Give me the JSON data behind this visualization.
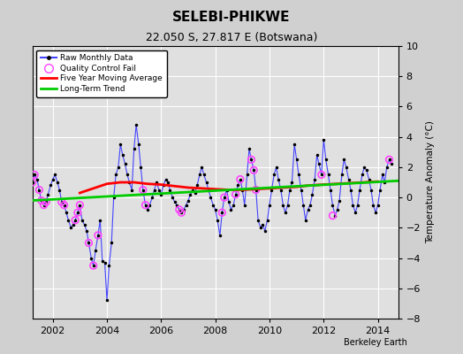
{
  "title": "SELEBI-PHIKWE",
  "subtitle": "22.050 S, 27.817 E (Botswana)",
  "ylabel": "Temperature Anomaly (°C)",
  "credit": "Berkeley Earth",
  "xlim": [
    2001.25,
    2014.75
  ],
  "ylim": [
    -8,
    10
  ],
  "yticks": [
    -8,
    -6,
    -4,
    -2,
    0,
    2,
    4,
    6,
    8,
    10
  ],
  "xticks": [
    2002,
    2004,
    2006,
    2008,
    2010,
    2012,
    2014
  ],
  "raw_x": [
    2001.25,
    2001.33,
    2001.42,
    2001.5,
    2001.58,
    2001.67,
    2001.75,
    2001.83,
    2001.92,
    2002.0,
    2002.08,
    2002.17,
    2002.25,
    2002.33,
    2002.42,
    2002.5,
    2002.58,
    2002.67,
    2002.75,
    2002.83,
    2002.92,
    2003.0,
    2003.08,
    2003.17,
    2003.25,
    2003.33,
    2003.42,
    2003.5,
    2003.58,
    2003.67,
    2003.75,
    2003.83,
    2003.92,
    2004.0,
    2004.08,
    2004.17,
    2004.25,
    2004.33,
    2004.42,
    2004.5,
    2004.58,
    2004.67,
    2004.75,
    2004.83,
    2004.92,
    2005.0,
    2005.08,
    2005.17,
    2005.25,
    2005.33,
    2005.42,
    2005.5,
    2005.58,
    2005.67,
    2005.75,
    2005.83,
    2005.92,
    2006.0,
    2006.08,
    2006.17,
    2006.25,
    2006.33,
    2006.42,
    2006.5,
    2006.58,
    2006.67,
    2006.75,
    2006.83,
    2006.92,
    2007.0,
    2007.08,
    2007.17,
    2007.25,
    2007.33,
    2007.42,
    2007.5,
    2007.58,
    2007.67,
    2007.75,
    2007.83,
    2007.92,
    2008.0,
    2008.08,
    2008.17,
    2008.25,
    2008.33,
    2008.42,
    2008.5,
    2008.58,
    2008.67,
    2008.75,
    2008.83,
    2008.92,
    2009.0,
    2009.08,
    2009.17,
    2009.25,
    2009.33,
    2009.42,
    2009.5,
    2009.58,
    2009.67,
    2009.75,
    2009.83,
    2009.92,
    2010.0,
    2010.08,
    2010.17,
    2010.25,
    2010.33,
    2010.42,
    2010.5,
    2010.58,
    2010.67,
    2010.75,
    2010.83,
    2010.92,
    2011.0,
    2011.08,
    2011.17,
    2011.25,
    2011.33,
    2011.42,
    2011.5,
    2011.58,
    2011.67,
    2011.75,
    2011.83,
    2011.92,
    2012.0,
    2012.08,
    2012.17,
    2012.25,
    2012.33,
    2012.42,
    2012.5,
    2012.58,
    2012.67,
    2012.75,
    2012.83,
    2012.92,
    2013.0,
    2013.08,
    2013.17,
    2013.25,
    2013.33,
    2013.42,
    2013.5,
    2013.58,
    2013.67,
    2013.75,
    2013.83,
    2013.92,
    2014.0,
    2014.08,
    2014.17,
    2014.25,
    2014.33,
    2014.42,
    2014.5
  ],
  "raw_y": [
    1.0,
    1.5,
    1.2,
    0.5,
    -0.2,
    -0.5,
    -0.3,
    0.2,
    0.8,
    1.2,
    1.5,
    1.0,
    0.5,
    -0.3,
    -0.5,
    -1.0,
    -1.5,
    -2.0,
    -1.8,
    -1.5,
    -1.0,
    -0.5,
    -1.5,
    -1.8,
    -2.2,
    -3.0,
    -4.0,
    -4.5,
    -3.5,
    -2.5,
    -1.5,
    -4.2,
    -4.3,
    -6.8,
    -4.5,
    -3.0,
    0.0,
    1.5,
    2.0,
    3.5,
    2.8,
    2.2,
    1.5,
    1.0,
    0.5,
    3.2,
    4.8,
    3.5,
    2.0,
    0.5,
    -0.5,
    -0.8,
    -0.5,
    0.0,
    0.5,
    1.0,
    0.5,
    0.2,
    0.8,
    1.2,
    1.0,
    0.5,
    0.0,
    -0.3,
    -0.5,
    -0.8,
    -1.0,
    -0.8,
    -0.5,
    -0.2,
    0.2,
    0.5,
    0.3,
    0.8,
    1.5,
    2.0,
    1.5,
    1.0,
    0.5,
    0.0,
    -0.5,
    -0.8,
    -1.5,
    -2.5,
    -1.0,
    0.0,
    0.5,
    -0.3,
    -0.8,
    -0.5,
    0.2,
    0.8,
    1.2,
    0.5,
    -0.5,
    1.5,
    3.2,
    2.5,
    1.8,
    0.5,
    -1.5,
    -2.0,
    -1.8,
    -2.2,
    -1.5,
    -0.5,
    0.5,
    1.5,
    2.0,
    1.2,
    0.5,
    -0.5,
    -1.0,
    -0.5,
    0.5,
    1.0,
    3.5,
    2.5,
    1.5,
    0.5,
    -0.5,
    -1.5,
    -0.8,
    -0.5,
    0.2,
    1.2,
    2.8,
    2.2,
    1.5,
    3.8,
    2.5,
    1.5,
    0.5,
    -0.5,
    -1.2,
    -0.8,
    -0.2,
    1.5,
    2.5,
    2.0,
    1.2,
    0.5,
    -0.5,
    -1.0,
    -0.5,
    0.5,
    1.5,
    2.0,
    1.8,
    1.2,
    0.5,
    -0.5,
    -1.0,
    -0.5,
    0.5,
    1.5,
    1.0,
    2.0,
    2.5,
    2.2
  ],
  "qc_fail_x": [
    2001.25,
    2001.33,
    2001.5,
    2001.58,
    2001.67,
    2001.75,
    2002.33,
    2002.42,
    2002.83,
    2002.92,
    2003.0,
    2003.33,
    2003.5,
    2003.67,
    2005.33,
    2005.42,
    2006.67,
    2006.75,
    2008.25,
    2008.33,
    2008.75,
    2008.92,
    2009.33,
    2009.42,
    2009.5,
    2011.92,
    2012.33,
    2014.42
  ],
  "qc_fail_y": [
    1.0,
    1.5,
    0.5,
    -0.2,
    -0.5,
    -0.3,
    -0.3,
    -0.5,
    -1.5,
    -1.0,
    -0.5,
    -3.0,
    -4.5,
    -2.5,
    0.5,
    -0.5,
    -0.8,
    -1.0,
    -1.0,
    0.0,
    0.2,
    1.2,
    2.5,
    1.8,
    0.5,
    1.5,
    -1.2,
    2.5
  ],
  "moving_avg_x": [
    2003.0,
    2003.5,
    2004.0,
    2004.5,
    2005.0,
    2005.5,
    2006.0,
    2006.5,
    2007.0,
    2007.5,
    2008.0,
    2008.5,
    2009.0,
    2009.5,
    2010.0,
    2010.5,
    2011.0,
    2011.5,
    2012.0,
    2012.5,
    2013.0,
    2013.5,
    2014.0
  ],
  "moving_avg_y": [
    0.3,
    0.6,
    0.9,
    1.0,
    1.0,
    0.9,
    0.85,
    0.75,
    0.65,
    0.6,
    0.55,
    0.5,
    0.5,
    0.55,
    0.6,
    0.65,
    0.7,
    0.8,
    0.85,
    0.9,
    0.95,
    1.0,
    1.05
  ],
  "trend_x": [
    2001.25,
    2014.75
  ],
  "trend_y": [
    -0.2,
    1.1
  ],
  "raw_line_color": "#4444ff",
  "moving_avg_color": "#ff0000",
  "trend_color": "#00cc00",
  "qc_color": "#ff44ff",
  "bg_color": "#e0e0e0",
  "fig_bg_color": "#d0d0d0"
}
